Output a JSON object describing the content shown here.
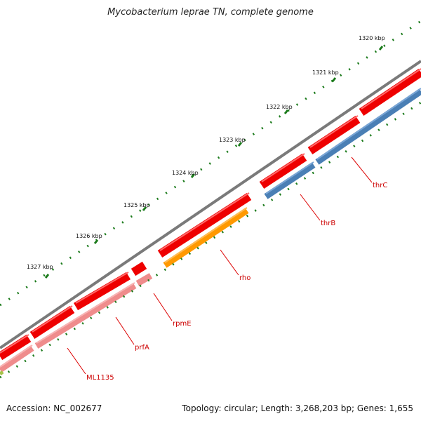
{
  "title": "Mycobacterium leprae TN, complete genome",
  "footer": {
    "accession": "Accession: NC_002677",
    "summary": "Topology: circular; Length: 3,268,203 bp; Genes: 1,655"
  },
  "ticks": [
    {
      "label": "1320 kbp"
    },
    {
      "label": "1321 kbp"
    },
    {
      "label": "1322 kbp"
    },
    {
      "label": "1323 kbp"
    },
    {
      "label": "1324 kbp"
    },
    {
      "label": "1325 kbp"
    },
    {
      "label": "1326 kbp"
    },
    {
      "label": "1327 kbp"
    }
  ],
  "gene_labels": [
    {
      "label": "thrC",
      "color": "#cc0000"
    },
    {
      "label": "thrB",
      "color": "#cc0000"
    },
    {
      "label": "rho",
      "color": "#cc0000"
    },
    {
      "label": "rpmE",
      "color": "#cc0000"
    },
    {
      "label": "prfA",
      "color": "#cc0000"
    },
    {
      "label": "ML1135",
      "color": "#cc0000"
    }
  ],
  "colors": {
    "backbone": "#7a7a7a",
    "outer_track": "#ee0000",
    "thr_track": "#4a7fb5",
    "rho_track": "#ff9900",
    "pink_track": "#ef8c8c",
    "tick_mark": "#1a7a1a"
  }
}
